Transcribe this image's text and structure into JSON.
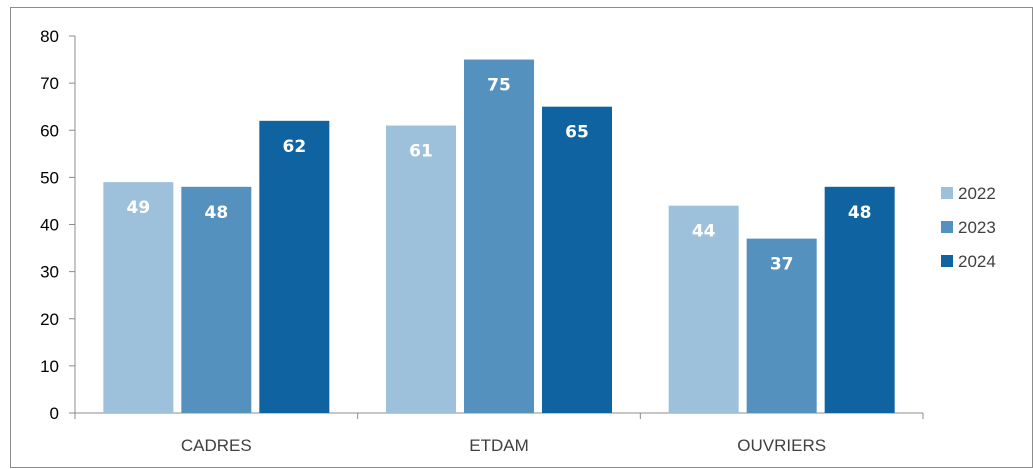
{
  "chart_data": {
    "type": "bar",
    "title": "",
    "xlabel": "",
    "ylabel": "",
    "categories": [
      "CADRES",
      "ETDAM",
      "OUVRIERS"
    ],
    "series": [
      {
        "name": "2022",
        "values": [
          49,
          61,
          44
        ],
        "color": "#9dc1da"
      },
      {
        "name": "2023",
        "values": [
          48,
          75,
          37
        ],
        "color": "#5591bf"
      },
      {
        "name": "2024",
        "values": [
          62,
          65,
          48
        ],
        "color": "#0e63a0"
      }
    ],
    "ylim": [
      0,
      80
    ],
    "yticks": [
      "0",
      "10",
      "20",
      "30",
      "40",
      "50",
      "60",
      "70",
      "80"
    ],
    "grid": false,
    "legend_position": "right"
  }
}
